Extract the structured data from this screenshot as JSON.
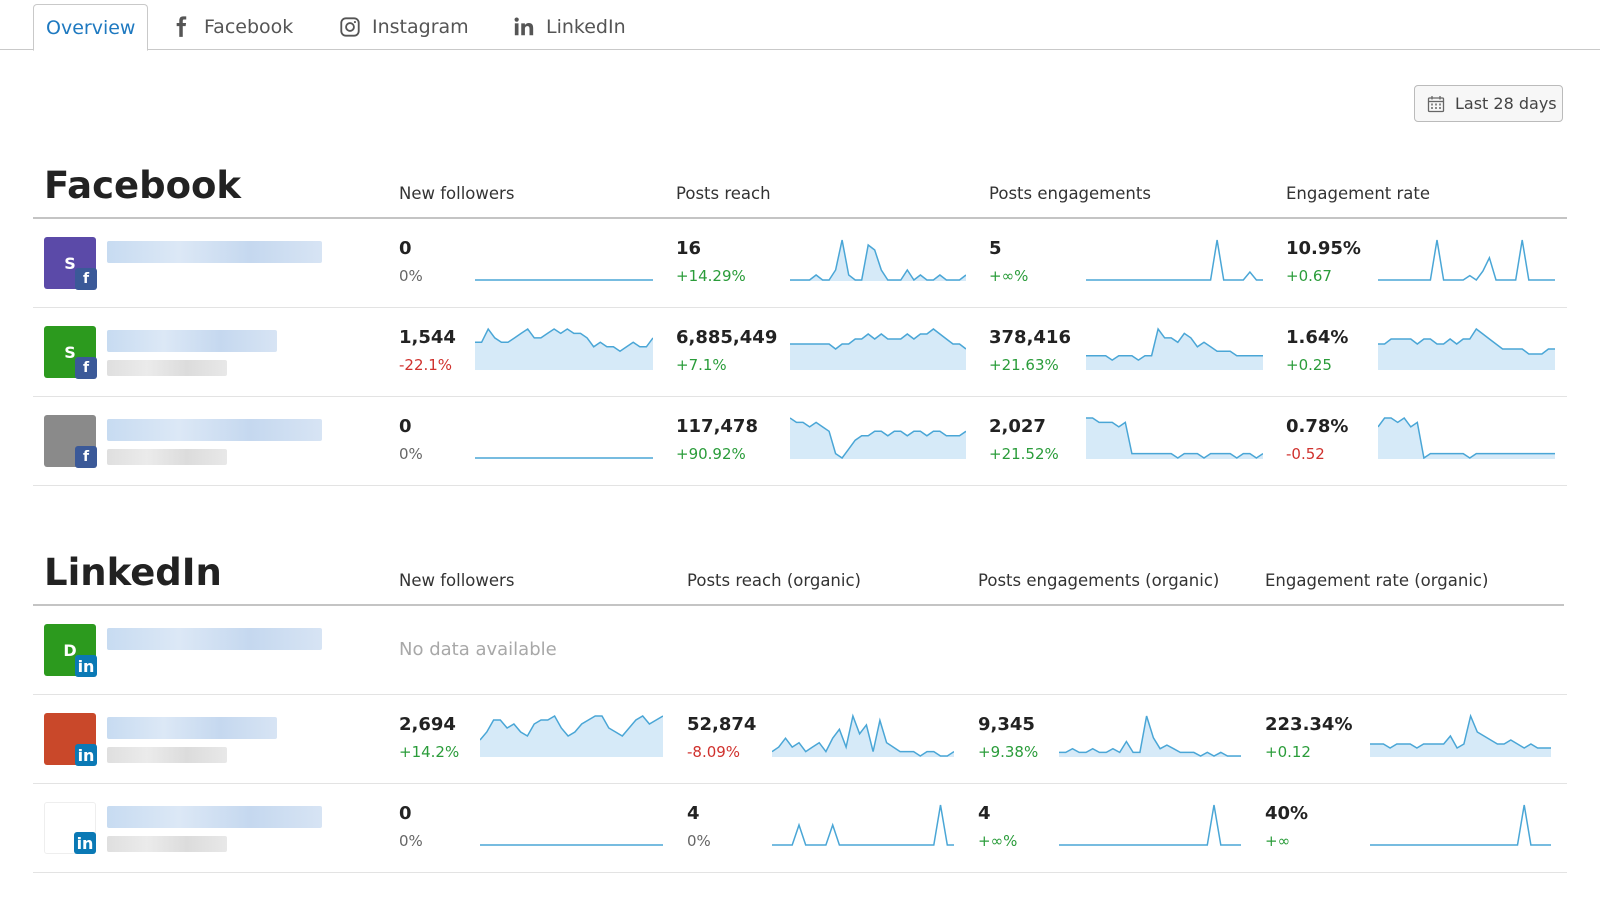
{
  "tabs": [
    {
      "label": "Overview",
      "icon": "none",
      "active": true
    },
    {
      "label": "Facebook",
      "icon": "facebook-icon",
      "active": false
    },
    {
      "label": "Instagram",
      "icon": "instagram-icon",
      "active": false
    },
    {
      "label": "LinkedIn",
      "icon": "linkedin-icon",
      "active": false
    }
  ],
  "date_range": {
    "label": "Last 28 days",
    "icon": "calendar-icon"
  },
  "colors": {
    "accent": "#1e79c0",
    "spark_stroke": "#4aa6d6",
    "spark_fill": "#d6eaf8",
    "positive": "#2a9c3a",
    "negative": "#d0312d"
  },
  "facebook": {
    "title": "Facebook",
    "columns": [
      "New followers",
      "Posts reach",
      "Posts engagements",
      "Engagement rate"
    ],
    "rows": [
      {
        "avatar": {
          "letter": "S",
          "color": "#5b4aa8",
          "network": "f"
        },
        "metrics": [
          {
            "value": "0",
            "change": "0%",
            "trend": "neutral",
            "series": [
              0,
              0,
              0,
              0,
              0,
              0,
              0,
              0,
              0,
              0,
              0,
              0,
              0,
              0,
              0,
              0,
              0,
              0,
              0,
              0,
              0,
              0,
              0,
              0,
              0,
              0,
              0,
              0
            ],
            "filled": false
          },
          {
            "value": "16",
            "change": "+14.29%",
            "trend": "positive",
            "series": [
              0,
              0,
              0,
              0,
              1,
              0,
              0,
              2,
              8,
              1,
              0,
              0,
              7,
              6,
              2,
              0,
              0,
              0,
              2,
              0,
              1,
              0,
              0,
              1,
              0,
              0,
              0,
              1
            ],
            "filled": true
          },
          {
            "value": "5",
            "change": "+∞%",
            "trend": "positive",
            "series": [
              0,
              0,
              0,
              0,
              0,
              0,
              0,
              0,
              0,
              0,
              0,
              0,
              0,
              0,
              0,
              0,
              0,
              0,
              0,
              0,
              10,
              0,
              0,
              0,
              0,
              2,
              0,
              0
            ],
            "filled": false
          },
          {
            "value": "10.95%",
            "change": "+0.67",
            "trend": "positive",
            "series": [
              0,
              0,
              0,
              0,
              0,
              0,
              0,
              0,
              0,
              9,
              0,
              0,
              0,
              0,
              1,
              0,
              2,
              5,
              0,
              0,
              0,
              0,
              9,
              0,
              0,
              0,
              0,
              0
            ],
            "filled": false
          }
        ]
      },
      {
        "avatar": {
          "letter": "S",
          "color": "#2c9a1e",
          "network": "f"
        },
        "metrics": [
          {
            "value": "1,544",
            "change": "-22.1%",
            "trend": "negative",
            "series": [
              6,
              6,
              9,
              7,
              6,
              6,
              7,
              8,
              9,
              7,
              7,
              8,
              9,
              8,
              9,
              8,
              8,
              7,
              5,
              6,
              5,
              5,
              4,
              5,
              6,
              5,
              5,
              7
            ],
            "filled": true
          },
          {
            "value": "6,885,449",
            "change": "+7.1%",
            "trend": "positive",
            "series": [
              5,
              5,
              5,
              5,
              5,
              5,
              5,
              4,
              5,
              5,
              6,
              6,
              7,
              6,
              7,
              6,
              6,
              6,
              7,
              6,
              7,
              7,
              8,
              7,
              6,
              5,
              5,
              4
            ],
            "filled": true
          },
          {
            "value": "378,416",
            "change": "+21.63%",
            "trend": "positive",
            "series": [
              3,
              3,
              3,
              3,
              2,
              3,
              3,
              3,
              2,
              3,
              3,
              9,
              7,
              7,
              6,
              8,
              7,
              5,
              6,
              5,
              4,
              4,
              4,
              3,
              3,
              3,
              3,
              3
            ],
            "filled": true
          },
          {
            "value": "1.64%",
            "change": "+0.25",
            "trend": "positive",
            "series": [
              5,
              5,
              6,
              6,
              6,
              6,
              5,
              6,
              6,
              5,
              5,
              6,
              5,
              6,
              6,
              8,
              7,
              6,
              5,
              4,
              4,
              4,
              4,
              3,
              3,
              3,
              4,
              4
            ],
            "filled": true
          }
        ]
      },
      {
        "avatar": {
          "letter": "",
          "color": "#8a8a8a",
          "network": "f"
        },
        "metrics": [
          {
            "value": "0",
            "change": "0%",
            "trend": "neutral",
            "series": [
              0,
              0,
              0,
              0,
              0,
              0,
              0,
              0,
              0,
              0,
              0,
              0,
              0,
              0,
              0,
              0,
              0,
              0,
              0,
              0,
              0,
              0,
              0,
              0,
              0,
              0,
              0,
              0
            ],
            "filled": false
          },
          {
            "value": "117,478",
            "change": "+90.92%",
            "trend": "positive",
            "series": [
              9,
              8,
              8,
              7,
              8,
              7,
              6,
              1,
              0,
              2,
              4,
              5,
              5,
              6,
              6,
              5,
              6,
              6,
              5,
              6,
              6,
              5,
              6,
              6,
              5,
              5,
              5,
              6
            ],
            "filled": true
          },
          {
            "value": "2,027",
            "change": "+21.52%",
            "trend": "positive",
            "series": [
              9,
              9,
              8,
              8,
              8,
              7,
              8,
              1,
              1,
              1,
              1,
              1,
              1,
              1,
              0,
              1,
              1,
              1,
              0,
              1,
              1,
              1,
              1,
              0,
              1,
              1,
              0,
              1
            ],
            "filled": true
          },
          {
            "value": "0.78%",
            "change": "-0.52",
            "trend": "negative",
            "series": [
              7,
              9,
              9,
              8,
              9,
              7,
              8,
              0,
              1,
              1,
              1,
              1,
              1,
              1,
              0,
              1,
              1,
              1,
              1,
              1,
              1,
              1,
              1,
              1,
              1,
              1,
              1,
              1
            ],
            "filled": true
          }
        ]
      }
    ]
  },
  "linkedin": {
    "title": "LinkedIn",
    "columns": [
      "New followers",
      "Posts reach (organic)",
      "Posts engagements (organic)",
      "Engagement rate (organic)"
    ],
    "no_data_text": "No data available",
    "rows": [
      {
        "avatar": {
          "letter": "D",
          "color": "#2c9a1e",
          "network": "in"
        },
        "metrics": []
      },
      {
        "avatar": {
          "letter": "",
          "color": "#c9482a",
          "network": "in"
        },
        "metrics": [
          {
            "value": "2,694",
            "change": "+14.2%",
            "trend": "positive",
            "series": [
              4,
              6,
              9,
              9,
              7,
              8,
              6,
              5,
              8,
              9,
              9,
              10,
              7,
              5,
              6,
              8,
              9,
              10,
              10,
              7,
              6,
              5,
              7,
              9,
              10,
              8,
              9,
              10
            ],
            "filled": true
          },
          {
            "value": "52,874",
            "change": "-8.09%",
            "trend": "negative",
            "series": [
              1,
              2,
              4,
              2,
              3,
              1,
              2,
              3,
              1,
              4,
              6,
              2,
              9,
              5,
              7,
              1,
              8,
              3,
              2,
              1,
              1,
              1,
              0,
              1,
              1,
              0,
              0,
              1
            ],
            "filled": true
          },
          {
            "value": "9,345",
            "change": "+9.38%",
            "trend": "positive",
            "series": [
              1,
              1,
              2,
              1,
              1,
              2,
              1,
              1,
              2,
              1,
              4,
              1,
              1,
              11,
              5,
              2,
              3,
              2,
              1,
              1,
              1,
              0,
              1,
              0,
              1,
              0,
              0,
              0
            ],
            "filled": true
          },
          {
            "value": "223.34%",
            "change": "+0.12",
            "trend": "positive",
            "series": [
              3,
              3,
              3,
              2,
              3,
              3,
              3,
              2,
              3,
              3,
              3,
              3,
              5,
              2,
              3,
              10,
              6,
              5,
              4,
              3,
              3,
              4,
              3,
              2,
              3,
              2,
              2,
              2
            ],
            "filled": true
          }
        ]
      },
      {
        "avatar": {
          "letter": "",
          "color": "#ffffff",
          "network": "in"
        },
        "metrics": [
          {
            "value": "0",
            "change": "0%",
            "trend": "neutral",
            "series": [
              0,
              0,
              0,
              0,
              0,
              0,
              0,
              0,
              0,
              0,
              0,
              0,
              0,
              0,
              0,
              0,
              0,
              0,
              0,
              0,
              0,
              0,
              0,
              0,
              0,
              0,
              0,
              0
            ],
            "filled": false
          },
          {
            "value": "4",
            "change": "0%",
            "trend": "neutral",
            "series": [
              0,
              0,
              0,
              0,
              6,
              0,
              0,
              0,
              0,
              6,
              0,
              0,
              0,
              0,
              0,
              0,
              0,
              0,
              0,
              0,
              0,
              0,
              0,
              0,
              0,
              12,
              0,
              0
            ],
            "filled": false
          },
          {
            "value": "4",
            "change": "+∞%",
            "trend": "positive",
            "series": [
              0,
              0,
              0,
              0,
              0,
              0,
              0,
              0,
              0,
              0,
              0,
              0,
              0,
              0,
              0,
              0,
              0,
              0,
              0,
              0,
              0,
              0,
              0,
              12,
              0,
              0,
              0,
              0
            ],
            "filled": false
          },
          {
            "value": "40%",
            "change": "+∞",
            "trend": "positive",
            "series": [
              0,
              0,
              0,
              0,
              0,
              0,
              0,
              0,
              0,
              0,
              0,
              0,
              0,
              0,
              0,
              0,
              0,
              0,
              0,
              0,
              0,
              0,
              0,
              12,
              0,
              0,
              0,
              0
            ],
            "filled": false
          }
        ]
      }
    ]
  }
}
